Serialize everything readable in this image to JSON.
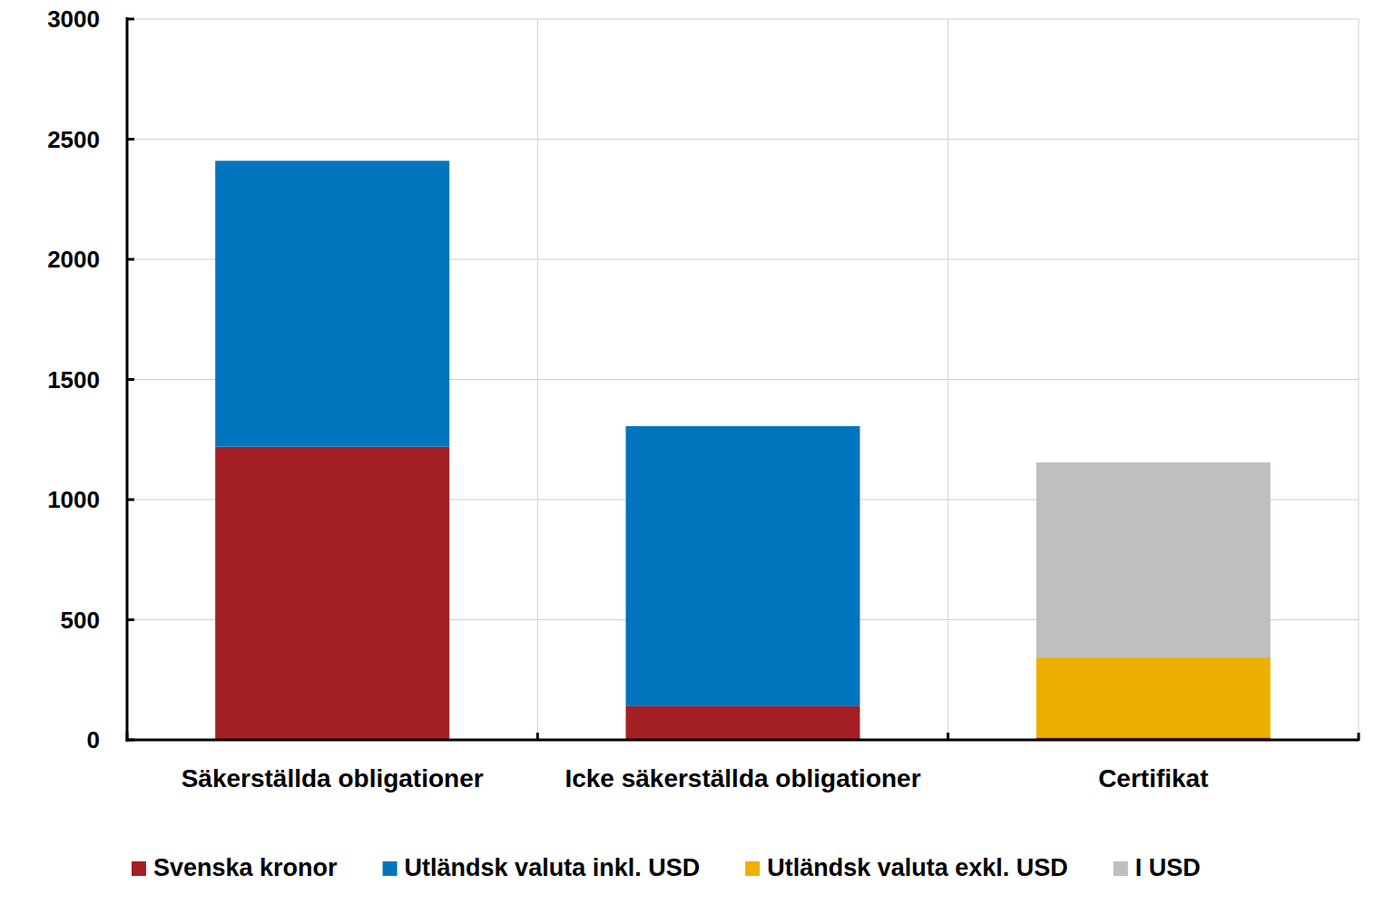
{
  "chart_data": {
    "type": "bar",
    "stacked": true,
    "grid": true,
    "legend": "bottom",
    "categories": [
      "Säkerställda obligationer",
      "Icke säkerställda obligationer",
      "Certifikat"
    ],
    "series": [
      {
        "name": "Svenska kronor",
        "color": "#a31f24",
        "values": [
          1220,
          140,
          10
        ]
      },
      {
        "name": "Utländsk valuta inkl. USD",
        "color": "#0075be",
        "values": [
          1190,
          1166,
          null
        ]
      },
      {
        "name": "Utländsk valuta exkl. USD",
        "color": "#eeb000",
        "values": [
          null,
          null,
          333
        ]
      },
      {
        "name": "I USD",
        "color": "#bfbfbf",
        "values": [
          null,
          null,
          812
        ]
      }
    ],
    "ylim": [
      0,
      3000
    ],
    "yticks": [
      0,
      500,
      1000,
      1500,
      2000,
      2500,
      3000
    ]
  }
}
